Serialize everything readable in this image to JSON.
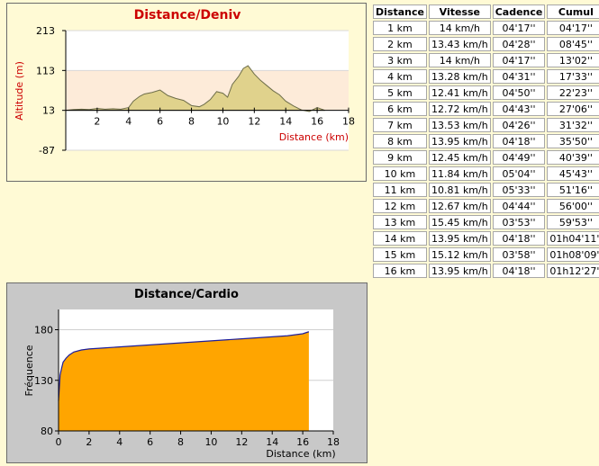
{
  "chart_data": [
    {
      "type": "area",
      "title": "Distance/Deniv",
      "xlabel": "Distance (km)",
      "ylabel": "Altitude (m)",
      "xlim": [
        0,
        18
      ],
      "ylim": [
        -87,
        213
      ],
      "x_ticks": [
        2,
        4,
        6,
        8,
        10,
        12,
        14,
        16,
        18
      ],
      "y_ticks": [
        -87,
        13,
        113,
        213
      ],
      "grid": true,
      "series": [
        {
          "x": [
            0,
            0.5,
            1.0,
            1.5,
            2.0,
            2.5,
            3.0,
            3.5,
            4.0,
            4.3,
            4.7,
            5.0,
            5.5,
            6.0,
            6.5,
            7.0,
            7.5,
            8.0,
            8.5,
            8.8,
            9.2,
            9.6,
            10.0,
            10.3,
            10.6,
            11.0,
            11.3,
            11.6,
            12.0,
            12.4,
            12.8,
            13.2,
            13.6,
            14.0,
            14.5,
            15.0,
            15.5,
            16.0,
            16.5
          ],
          "values": [
            13,
            15,
            16,
            15,
            18,
            16,
            17,
            16,
            20,
            36,
            48,
            54,
            58,
            64,
            50,
            43,
            38,
            25,
            22,
            28,
            40,
            60,
            56,
            46,
            78,
            98,
            118,
            125,
            104,
            88,
            75,
            62,
            52,
            36,
            24,
            14,
            10,
            20,
            13
          ]
        }
      ]
    },
    {
      "type": "area",
      "title": "Distance/Cardio",
      "xlabel": "Distance (km)",
      "ylabel": "Fréquence",
      "xlim": [
        0,
        18
      ],
      "ylim": [
        80,
        200
      ],
      "x_ticks": [
        0,
        2,
        4,
        6,
        8,
        10,
        12,
        14,
        16,
        18
      ],
      "y_ticks": [
        80,
        130,
        180
      ],
      "grid": true,
      "series": [
        {
          "x": [
            0,
            0.1,
            0.2,
            0.3,
            0.5,
            0.7,
            1.0,
            1.5,
            2.0,
            3.0,
            4.0,
            5.0,
            6.0,
            7.0,
            8.0,
            9.0,
            10.0,
            11.0,
            12.0,
            13.0,
            14.0,
            15.0,
            16.0,
            16.4
          ],
          "values": [
            110,
            135,
            142,
            148,
            152,
            155,
            158,
            160,
            161,
            162,
            163,
            164,
            165,
            166,
            167,
            168,
            169,
            170,
            171,
            172,
            173,
            174,
            176,
            178
          ]
        }
      ]
    }
  ],
  "split_table": {
    "headers": [
      "Distance",
      "Vitesse",
      "Cadence",
      "Cumul"
    ],
    "rows": [
      [
        "1 km",
        "14 km/h",
        "04'17''",
        "04'17''"
      ],
      [
        "2 km",
        "13.43 km/h",
        "04'28''",
        "08'45''"
      ],
      [
        "3 km",
        "14 km/h",
        "04'17''",
        "13'02''"
      ],
      [
        "4 km",
        "13.28 km/h",
        "04'31''",
        "17'33''"
      ],
      [
        "5 km",
        "12.41 km/h",
        "04'50''",
        "22'23''"
      ],
      [
        "6 km",
        "12.72 km/h",
        "04'43''",
        "27'06''"
      ],
      [
        "7 km",
        "13.53 km/h",
        "04'26''",
        "31'32''"
      ],
      [
        "8 km",
        "13.95 km/h",
        "04'18''",
        "35'50''"
      ],
      [
        "9 km",
        "12.45 km/h",
        "04'49''",
        "40'39''"
      ],
      [
        "10 km",
        "11.84 km/h",
        "05'04''",
        "45'43''"
      ],
      [
        "11 km",
        "10.81 km/h",
        "05'33''",
        "51'16''"
      ],
      [
        "12 km",
        "12.67 km/h",
        "04'44''",
        "56'00''"
      ],
      [
        "13 km",
        "15.45 km/h",
        "03'53''",
        "59'53''"
      ],
      [
        "14 km",
        "13.95 km/h",
        "04'18''",
        "01h04'11''"
      ],
      [
        "15 km",
        "15.12 km/h",
        "03'58''",
        "01h08'09''"
      ],
      [
        "16 km",
        "13.95 km/h",
        "04'18''",
        "01h12'27''"
      ]
    ]
  },
  "colors": {
    "page_background": "#fffad5",
    "deniv_title": "#cc0000",
    "deniv_fill": "#e0d28c",
    "deniv_band": "#fdebd9",
    "cardio_fill": "#ffa500",
    "cardio_line": "#1e1e9a",
    "cardio_panel": "#c8c8c8"
  }
}
